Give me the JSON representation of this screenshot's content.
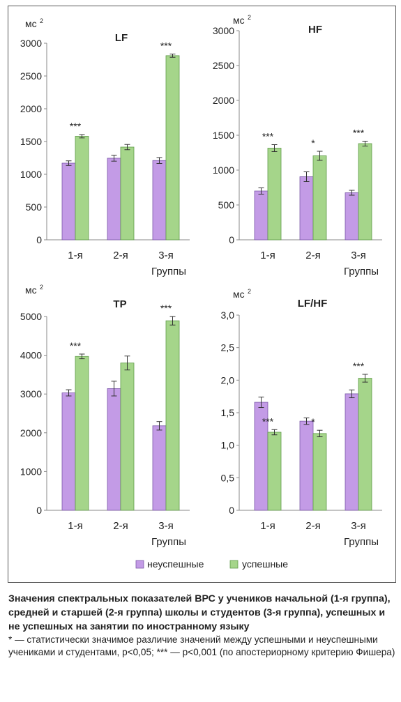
{
  "legend": {
    "items": [
      {
        "label": "неуспешные",
        "color": "#c39be6",
        "border": "#7a58a8"
      },
      {
        "label": "успешные",
        "color": "#a5d58a",
        "border": "#5f9a48"
      }
    ]
  },
  "caption": {
    "title": "Значения спектральных показателей ВРС у учеников начальной (1-я группа), средней и старшей (2-я группа) школы и студентов (3-я группа), успешных и не успешных на занятии по иностранному языку",
    "note": "* — статистически значимое различие значений между успешными и неуспешными учениками и студентами, p<0,05; *** — p<0,001 (по апостериорному критерию Фишера)"
  },
  "chart_data": [
    {
      "type": "bar",
      "title": "LF",
      "unit": "мс²",
      "xlabel": "Группы",
      "categories": [
        "1-я",
        "2-я",
        "3-я"
      ],
      "ylim": [
        0,
        3000
      ],
      "yticks": [
        "0",
        "500",
        "1000",
        "1500",
        "2000",
        "2500",
        "3000"
      ],
      "ytick_values": [
        0,
        500,
        1000,
        1500,
        2000,
        2500,
        3000
      ],
      "series": [
        {
          "name": "неуспешные",
          "values": [
            1170,
            1245,
            1210
          ],
          "errors": [
            35,
            45,
            45
          ]
        },
        {
          "name": "успешные",
          "values": [
            1580,
            1415,
            2810
          ],
          "errors": [
            25,
            40,
            25
          ]
        }
      ],
      "significance": [
        "***",
        "",
        "***"
      ]
    },
    {
      "type": "bar",
      "title": "HF",
      "unit": "мс²",
      "xlabel": "Группы",
      "categories": [
        "1-я",
        "2-я",
        "3-я"
      ],
      "ylim": [
        0,
        3000
      ],
      "yticks": [
        "0",
        "500",
        "1000",
        "1500",
        "2000",
        "2500",
        "3000"
      ],
      "ytick_values": [
        0,
        500,
        1000,
        1500,
        2000,
        2500,
        3000
      ],
      "series": [
        {
          "name": "неуспешные",
          "values": [
            700,
            905,
            675
          ],
          "errors": [
            45,
            70,
            35
          ]
        },
        {
          "name": "успешные",
          "values": [
            1315,
            1205,
            1380
          ],
          "errors": [
            50,
            65,
            35
          ]
        }
      ],
      "significance": [
        "***",
        "*",
        "***"
      ]
    },
    {
      "type": "bar",
      "title": "TP",
      "unit": "мс²",
      "xlabel": "Группы",
      "categories": [
        "1-я",
        "2-я",
        "3-я"
      ],
      "ylim": [
        0,
        5000
      ],
      "yticks": [
        "0",
        "1000",
        "2000",
        "3000",
        "4000",
        "5000"
      ],
      "ytick_values": [
        0,
        1000,
        2000,
        3000,
        4000,
        5000
      ],
      "series": [
        {
          "name": "неуспешные",
          "values": [
            3030,
            3140,
            2180
          ],
          "errors": [
            80,
            190,
            110
          ]
        },
        {
          "name": "успешные",
          "values": [
            3970,
            3800,
            4890
          ],
          "errors": [
            60,
            180,
            110
          ]
        }
      ],
      "significance": [
        "***",
        "",
        "***"
      ]
    },
    {
      "type": "bar",
      "title": "LF/HF",
      "unit": "мс²",
      "xlabel": "Группы",
      "categories": [
        "1-я",
        "2-я",
        "3-я"
      ],
      "ylim": [
        0,
        3.0
      ],
      "yticks": [
        "0",
        "0,5",
        "1,0",
        "1,5",
        "2,0",
        "2,5",
        "3,0"
      ],
      "ytick_values": [
        0,
        0.5,
        1.0,
        1.5,
        2.0,
        2.5,
        3.0
      ],
      "series": [
        {
          "name": "неуспешные",
          "values": [
            1.66,
            1.37,
            1.79
          ],
          "errors": [
            0.08,
            0.05,
            0.06
          ]
        },
        {
          "name": "успешные",
          "values": [
            1.2,
            1.18,
            2.03
          ],
          "errors": [
            0.04,
            0.05,
            0.06
          ]
        }
      ],
      "significance": [
        "***",
        "*",
        "***"
      ]
    }
  ]
}
